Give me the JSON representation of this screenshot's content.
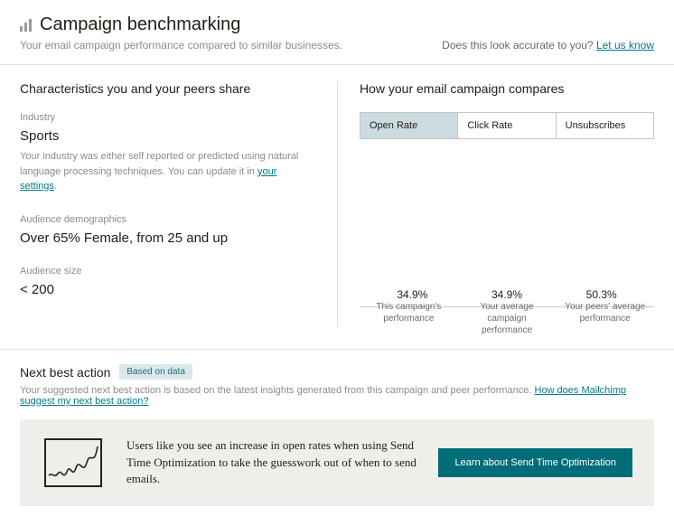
{
  "header": {
    "title": "Campaign benchmarking",
    "subtitle": "Your email campaign performance compared to similar businesses.",
    "feedback_prompt": "Does this look accurate to you?",
    "feedback_link": "Let us know"
  },
  "characteristics": {
    "heading": "Characteristics you and your peers share",
    "industry": {
      "label": "Industry",
      "value": "Sports",
      "desc_prefix": "Your industry was either self reported or predicted using natural language processing techniques. You can update it in ",
      "desc_link": "your settings",
      "desc_suffix": "."
    },
    "demographics": {
      "label": "Audience demographics",
      "value": "Over 65% Female, from 25 and up"
    },
    "size": {
      "label": "Audience size",
      "value": "< 200"
    }
  },
  "compare": {
    "heading": "How your email campaign compares",
    "tabs": [
      {
        "label": "Open Rate",
        "active": true
      },
      {
        "label": "Click Rate",
        "active": false
      },
      {
        "label": "Unsubscribes",
        "active": false
      }
    ],
    "chart": {
      "type": "bar",
      "y_max": 60,
      "bars": [
        {
          "value": 34.9,
          "label": "34.9%",
          "color": "#4cb2a6",
          "category": "This campaign's performance"
        },
        {
          "value": 34.9,
          "label": "34.9%",
          "color": "#e07b53",
          "category": "Your average campaign performance"
        },
        {
          "value": 50.3,
          "label": "50.3%",
          "color": "#e07b53",
          "category": "Your peers' average performance"
        }
      ],
      "axis_color": "#cccccc",
      "background": "#ffffff"
    }
  },
  "nba": {
    "title": "Next best action",
    "badge": "Based on data",
    "desc_prefix": "Your suggested next best action is based on the latest insights generated from this campaign and peer performance. ",
    "desc_link": "How does Mailchimp suggest my next best action?",
    "tip_text": "Users like you see an increase in open rates when using Send Time Optimization to take the guesswork out of when to send emails.",
    "cta_label": "Learn about Send Time Optimization"
  }
}
